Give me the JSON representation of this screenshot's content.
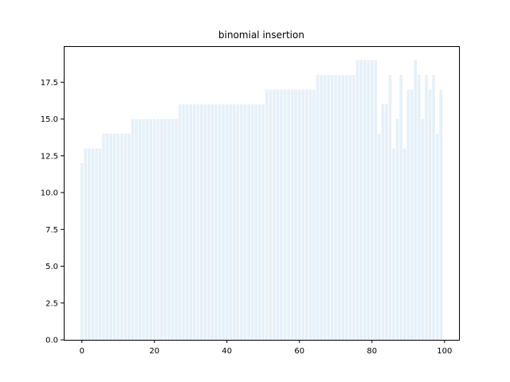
{
  "chart_data": {
    "type": "bar",
    "title": "binomial insertion",
    "xlabel": "",
    "ylabel": "",
    "xlim": [
      -5,
      104
    ],
    "ylim": [
      0,
      19.95
    ],
    "xticks": [
      0,
      20,
      40,
      60,
      80,
      100
    ],
    "xtick_labels": [
      "0",
      "20",
      "40",
      "60",
      "80",
      "100"
    ],
    "yticks": [
      0,
      2.5,
      5,
      7.5,
      10,
      12.5,
      15,
      17.5
    ],
    "ytick_labels": [
      "0.0",
      "2.5",
      "5.0",
      "7.5",
      "10.0",
      "12.5",
      "15.0",
      "17.5"
    ],
    "bar_color": "#e6f0f8",
    "grid": false,
    "x": [
      0,
      1,
      2,
      3,
      4,
      5,
      6,
      7,
      8,
      9,
      10,
      11,
      12,
      13,
      14,
      15,
      16,
      17,
      18,
      19,
      20,
      21,
      22,
      23,
      24,
      25,
      26,
      27,
      28,
      29,
      30,
      31,
      32,
      33,
      34,
      35,
      36,
      37,
      38,
      39,
      40,
      41,
      42,
      43,
      44,
      45,
      46,
      47,
      48,
      49,
      50,
      51,
      52,
      53,
      54,
      55,
      56,
      57,
      58,
      59,
      60,
      61,
      62,
      63,
      64,
      65,
      66,
      67,
      68,
      69,
      70,
      71,
      72,
      73,
      74,
      75,
      76,
      77,
      78,
      79,
      80,
      81,
      82,
      83,
      84,
      85,
      86,
      87,
      88,
      89,
      90,
      91,
      92,
      93,
      94,
      95,
      96,
      97,
      98,
      99
    ],
    "values": [
      12,
      13,
      13,
      13,
      13,
      13,
      14,
      14,
      14,
      14,
      14,
      14,
      14,
      14,
      15,
      15,
      15,
      15,
      15,
      15,
      15,
      15,
      15,
      15,
      15,
      15,
      15,
      16,
      16,
      16,
      16,
      16,
      16,
      16,
      16,
      16,
      16,
      16,
      16,
      16,
      16,
      16,
      16,
      16,
      16,
      16,
      16,
      16,
      16,
      16,
      16,
      17,
      17,
      17,
      17,
      17,
      17,
      17,
      17,
      17,
      17,
      17,
      17,
      17,
      17,
      18,
      18,
      18,
      18,
      18,
      18,
      18,
      18,
      18,
      18,
      18,
      19,
      19,
      19,
      19,
      19,
      19,
      14,
      16,
      16,
      18,
      13,
      15,
      18,
      13,
      17,
      17,
      19,
      18,
      15,
      18,
      17,
      18,
      14,
      17
    ]
  }
}
